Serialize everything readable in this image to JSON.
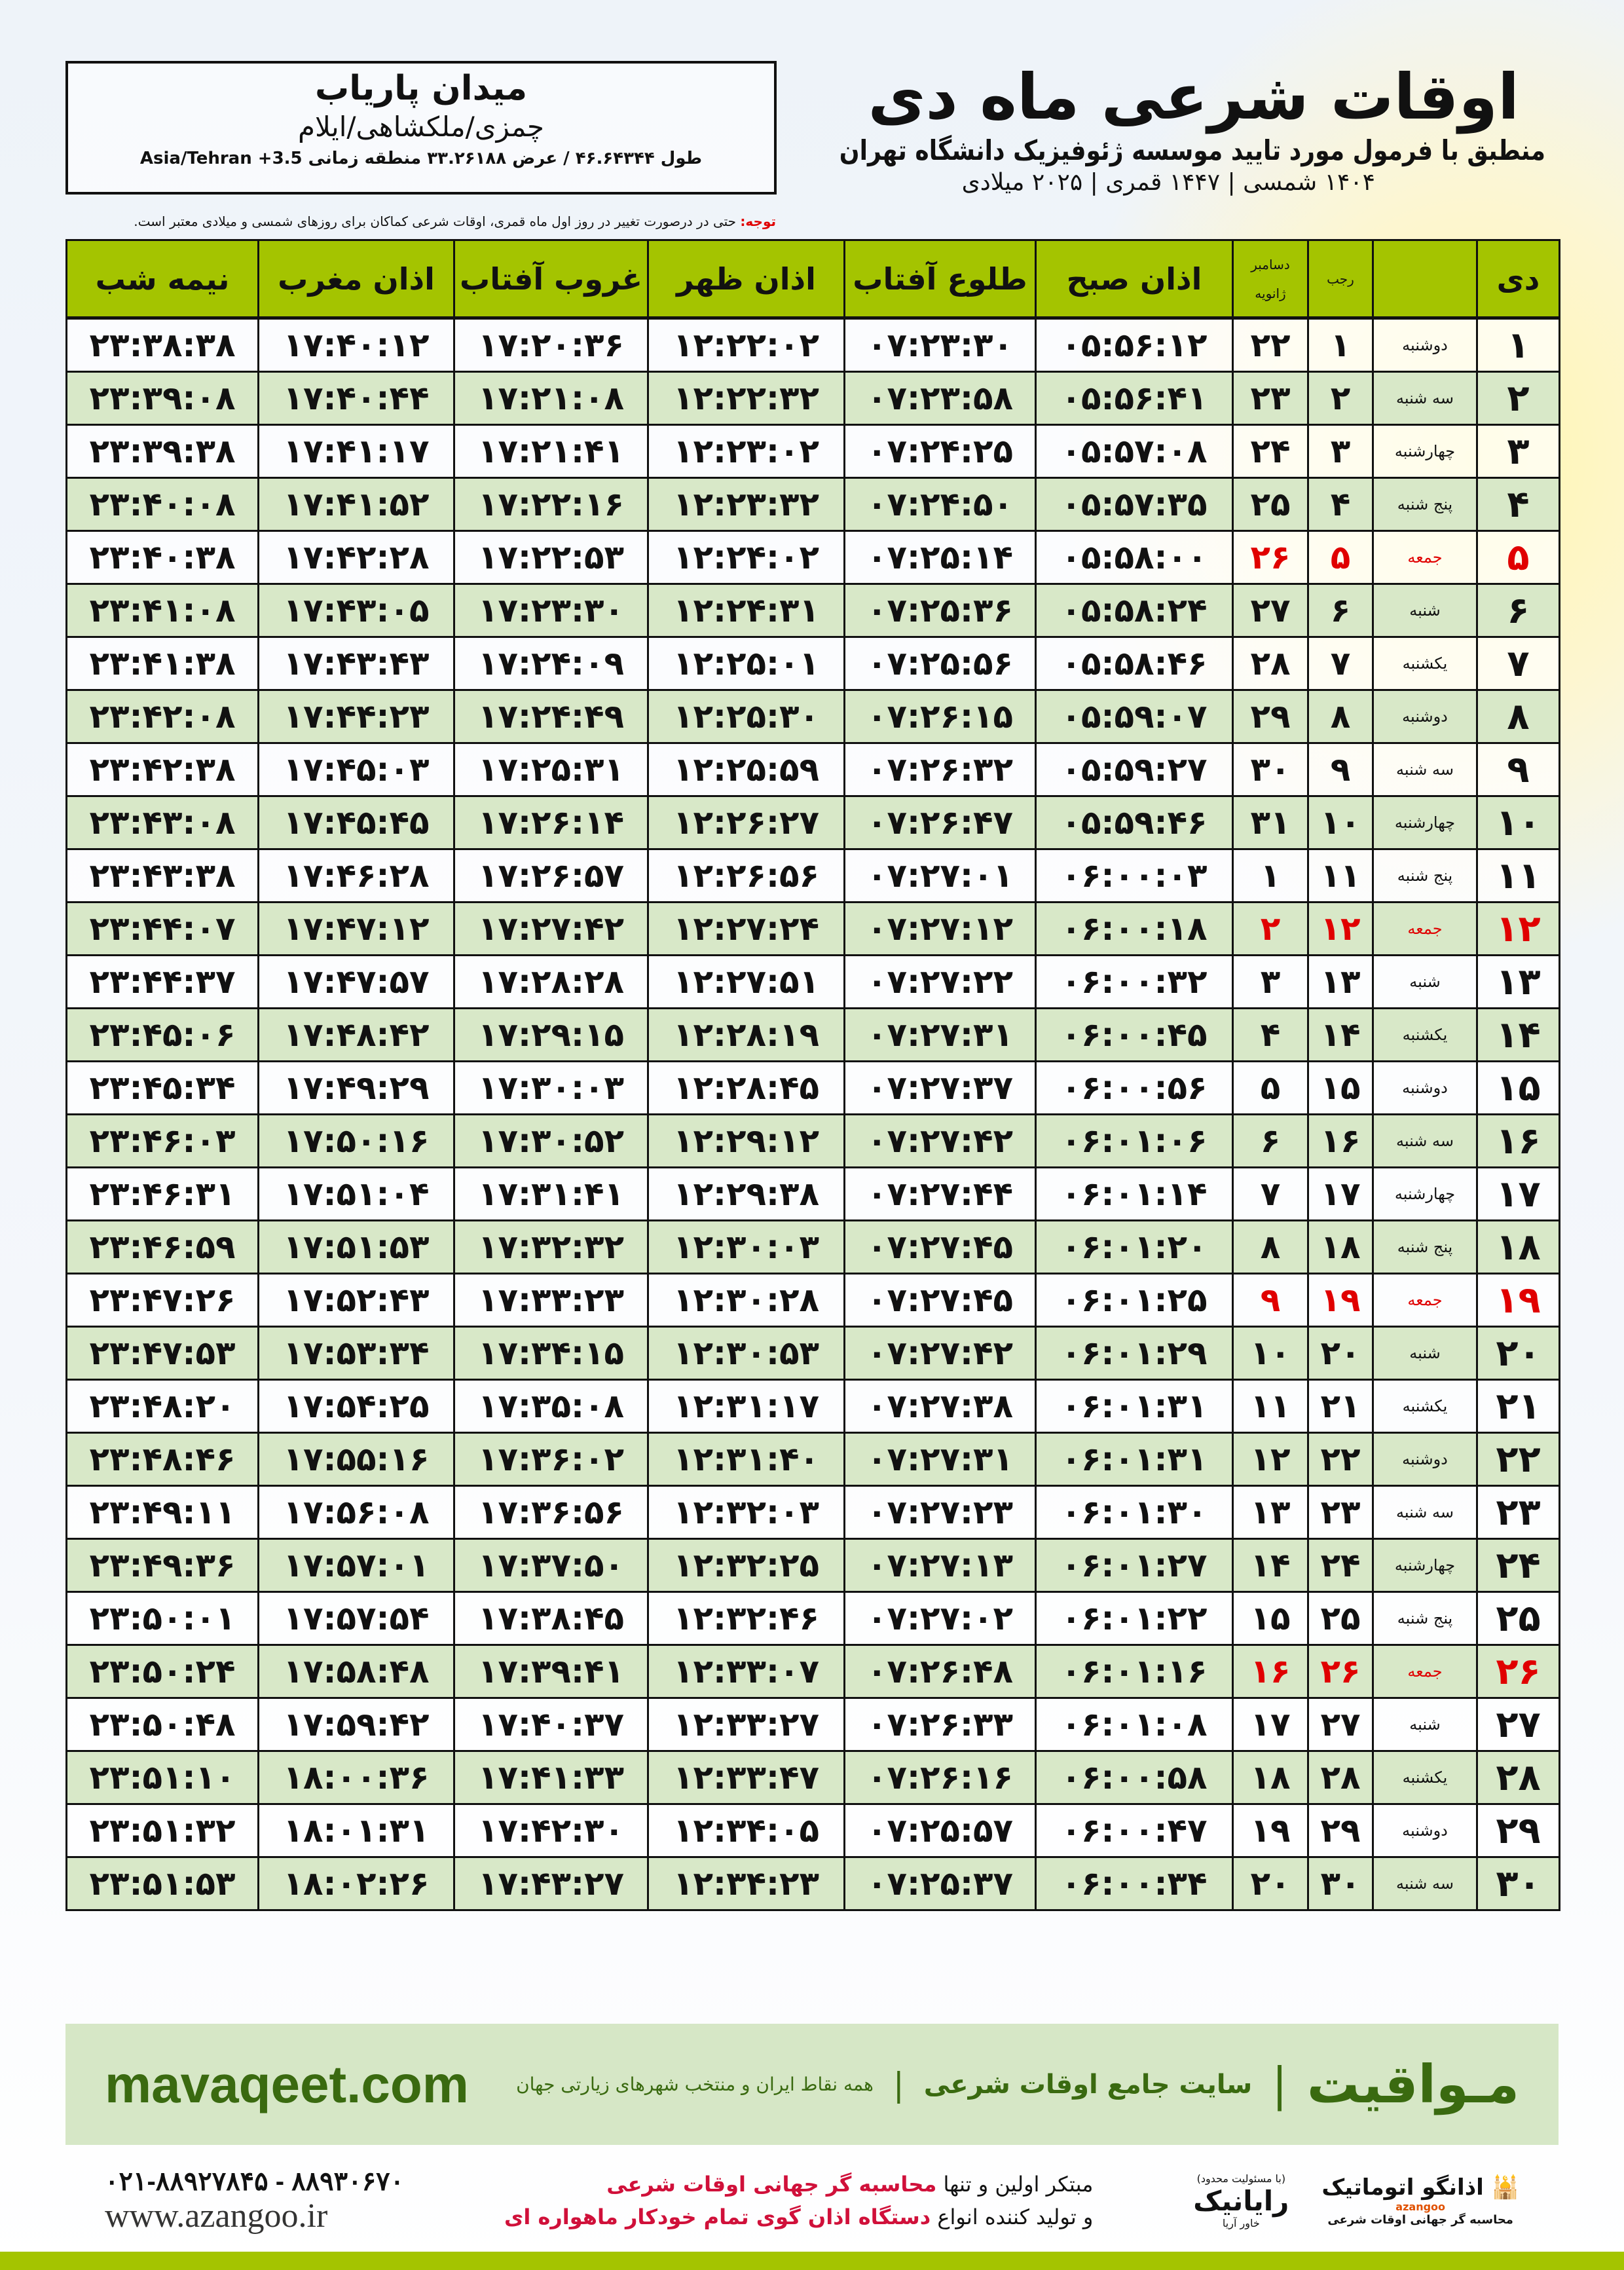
{
  "location": {
    "name": "میدان پاریاب",
    "region": "چمزی/ملکشاهی/ایلام",
    "coords": "طول ۴۶.۶۴۳۴۴ / عرض ۳۳.۲۶۱۸۸ منطقه زمانی ‎Asia/Tehran +3.5"
  },
  "header": {
    "title": "اوقات شرعی ماه دی",
    "subtitle": "منطبق با فرمول مورد تایید موسسه ژئوفیزیک دانشگاه تهران",
    "dates": "۱۴۰۴ شمسی | ۱۴۴۷ قمری | ۲۰۲۵ میلادی"
  },
  "note": {
    "label": "توجه:",
    "text": " حتی در درصورت تغییر در روز اول ماه قمری، اوقات شرعی کماکان برای روزهای شمسی و میلادی معتبر است."
  },
  "columns": {
    "day": "دی",
    "rajab": "رجب",
    "greg1": "دسامبر",
    "greg2": "ژانویه",
    "sobh": "اذان صبح",
    "tolu": "طلوع آفتاب",
    "zohr": "اذان ظهر",
    "ghorub": "غروب آفتاب",
    "maghrib": "اذان مغرب",
    "nimeh": "نیمه شب"
  },
  "colors": {
    "header_green": "#a4c400",
    "row_green": "#d8e8c8",
    "friday_red": "#e00000",
    "brand_green": "#3a6a10"
  },
  "rows": [
    [
      "۱",
      "دوشنبه",
      "۱",
      "۲۲",
      "۰۵:۵۶:۱۲",
      "۰۷:۲۳:۳۰",
      "۱۲:۲۲:۰۲",
      "۱۷:۲۰:۳۶",
      "۱۷:۴۰:۱۲",
      "۲۳:۳۸:۳۸"
    ],
    [
      "۲",
      "سه شنبه",
      "۲",
      "۲۳",
      "۰۵:۵۶:۴۱",
      "۰۷:۲۳:۵۸",
      "۱۲:۲۲:۳۲",
      "۱۷:۲۱:۰۸",
      "۱۷:۴۰:۴۴",
      "۲۳:۳۹:۰۸"
    ],
    [
      "۳",
      "چهارشنبه",
      "۳",
      "۲۴",
      "۰۵:۵۷:۰۸",
      "۰۷:۲۴:۲۵",
      "۱۲:۲۳:۰۲",
      "۱۷:۲۱:۴۱",
      "۱۷:۴۱:۱۷",
      "۲۳:۳۹:۳۸"
    ],
    [
      "۴",
      "پنج شنبه",
      "۴",
      "۲۵",
      "۰۵:۵۷:۳۵",
      "۰۷:۲۴:۵۰",
      "۱۲:۲۳:۳۲",
      "۱۷:۲۲:۱۶",
      "۱۷:۴۱:۵۲",
      "۲۳:۴۰:۰۸"
    ],
    [
      "۵",
      "جمعه",
      "۵",
      "۲۶",
      "۰۵:۵۸:۰۰",
      "۰۷:۲۵:۱۴",
      "۱۲:۲۴:۰۲",
      "۱۷:۲۲:۵۳",
      "۱۷:۴۲:۲۸",
      "۲۳:۴۰:۳۸"
    ],
    [
      "۶",
      "شنبه",
      "۶",
      "۲۷",
      "۰۵:۵۸:۲۴",
      "۰۷:۲۵:۳۶",
      "۱۲:۲۴:۳۱",
      "۱۷:۲۳:۳۰",
      "۱۷:۴۳:۰۵",
      "۲۳:۴۱:۰۸"
    ],
    [
      "۷",
      "یکشنبه",
      "۷",
      "۲۸",
      "۰۵:۵۸:۴۶",
      "۰۷:۲۵:۵۶",
      "۱۲:۲۵:۰۱",
      "۱۷:۲۴:۰۹",
      "۱۷:۴۳:۴۳",
      "۲۳:۴۱:۳۸"
    ],
    [
      "۸",
      "دوشنبه",
      "۸",
      "۲۹",
      "۰۵:۵۹:۰۷",
      "۰۷:۲۶:۱۵",
      "۱۲:۲۵:۳۰",
      "۱۷:۲۴:۴۹",
      "۱۷:۴۴:۲۳",
      "۲۳:۴۲:۰۸"
    ],
    [
      "۹",
      "سه شنبه",
      "۹",
      "۳۰",
      "۰۵:۵۹:۲۷",
      "۰۷:۲۶:۳۲",
      "۱۲:۲۵:۵۹",
      "۱۷:۲۵:۳۱",
      "۱۷:۴۵:۰۳",
      "۲۳:۴۲:۳۸"
    ],
    [
      "۱۰",
      "چهارشنبه",
      "۱۰",
      "۳۱",
      "۰۵:۵۹:۴۶",
      "۰۷:۲۶:۴۷",
      "۱۲:۲۶:۲۷",
      "۱۷:۲۶:۱۴",
      "۱۷:۴۵:۴۵",
      "۲۳:۴۳:۰۸"
    ],
    [
      "۱۱",
      "پنج شنبه",
      "۱۱",
      "۱",
      "۰۶:۰۰:۰۳",
      "۰۷:۲۷:۰۱",
      "۱۲:۲۶:۵۶",
      "۱۷:۲۶:۵۷",
      "۱۷:۴۶:۲۸",
      "۲۳:۴۳:۳۸"
    ],
    [
      "۱۲",
      "جمعه",
      "۱۲",
      "۲",
      "۰۶:۰۰:۱۸",
      "۰۷:۲۷:۱۲",
      "۱۲:۲۷:۲۴",
      "۱۷:۲۷:۴۲",
      "۱۷:۴۷:۱۲",
      "۲۳:۴۴:۰۷"
    ],
    [
      "۱۳",
      "شنبه",
      "۱۳",
      "۳",
      "۰۶:۰۰:۳۲",
      "۰۷:۲۷:۲۲",
      "۱۲:۲۷:۵۱",
      "۱۷:۲۸:۲۸",
      "۱۷:۴۷:۵۷",
      "۲۳:۴۴:۳۷"
    ],
    [
      "۱۴",
      "یکشنبه",
      "۱۴",
      "۴",
      "۰۶:۰۰:۴۵",
      "۰۷:۲۷:۳۱",
      "۱۲:۲۸:۱۹",
      "۱۷:۲۹:۱۵",
      "۱۷:۴۸:۴۲",
      "۲۳:۴۵:۰۶"
    ],
    [
      "۱۵",
      "دوشنبه",
      "۱۵",
      "۵",
      "۰۶:۰۰:۵۶",
      "۰۷:۲۷:۳۷",
      "۱۲:۲۸:۴۵",
      "۱۷:۳۰:۰۳",
      "۱۷:۴۹:۲۹",
      "۲۳:۴۵:۳۴"
    ],
    [
      "۱۶",
      "سه شنبه",
      "۱۶",
      "۶",
      "۰۶:۰۱:۰۶",
      "۰۷:۲۷:۴۲",
      "۱۲:۲۹:۱۲",
      "۱۷:۳۰:۵۲",
      "۱۷:۵۰:۱۶",
      "۲۳:۴۶:۰۳"
    ],
    [
      "۱۷",
      "چهارشنبه",
      "۱۷",
      "۷",
      "۰۶:۰۱:۱۴",
      "۰۷:۲۷:۴۴",
      "۱۲:۲۹:۳۸",
      "۱۷:۳۱:۴۱",
      "۱۷:۵۱:۰۴",
      "۲۳:۴۶:۳۱"
    ],
    [
      "۱۸",
      "پنج شنبه",
      "۱۸",
      "۸",
      "۰۶:۰۱:۲۰",
      "۰۷:۲۷:۴۵",
      "۱۲:۳۰:۰۳",
      "۱۷:۳۲:۳۲",
      "۱۷:۵۱:۵۳",
      "۲۳:۴۶:۵۹"
    ],
    [
      "۱۹",
      "جمعه",
      "۱۹",
      "۹",
      "۰۶:۰۱:۲۵",
      "۰۷:۲۷:۴۵",
      "۱۲:۳۰:۲۸",
      "۱۷:۳۳:۲۳",
      "۱۷:۵۲:۴۳",
      "۲۳:۴۷:۲۶"
    ],
    [
      "۲۰",
      "شنبه",
      "۲۰",
      "۱۰",
      "۰۶:۰۱:۲۹",
      "۰۷:۲۷:۴۲",
      "۱۲:۳۰:۵۳",
      "۱۷:۳۴:۱۵",
      "۱۷:۵۳:۳۴",
      "۲۳:۴۷:۵۳"
    ],
    [
      "۲۱",
      "یکشنبه",
      "۲۱",
      "۱۱",
      "۰۶:۰۱:۳۱",
      "۰۷:۲۷:۳۸",
      "۱۲:۳۱:۱۷",
      "۱۷:۳۵:۰۸",
      "۱۷:۵۴:۲۵",
      "۲۳:۴۸:۲۰"
    ],
    [
      "۲۲",
      "دوشنبه",
      "۲۲",
      "۱۲",
      "۰۶:۰۱:۳۱",
      "۰۷:۲۷:۳۱",
      "۱۲:۳۱:۴۰",
      "۱۷:۳۶:۰۲",
      "۱۷:۵۵:۱۶",
      "۲۳:۴۸:۴۶"
    ],
    [
      "۲۳",
      "سه شنبه",
      "۲۳",
      "۱۳",
      "۰۶:۰۱:۳۰",
      "۰۷:۲۷:۲۳",
      "۱۲:۳۲:۰۳",
      "۱۷:۳۶:۵۶",
      "۱۷:۵۶:۰۸",
      "۲۳:۴۹:۱۱"
    ],
    [
      "۲۴",
      "چهارشنبه",
      "۲۴",
      "۱۴",
      "۰۶:۰۱:۲۷",
      "۰۷:۲۷:۱۳",
      "۱۲:۳۲:۲۵",
      "۱۷:۳۷:۵۰",
      "۱۷:۵۷:۰۱",
      "۲۳:۴۹:۳۶"
    ],
    [
      "۲۵",
      "پنج شنبه",
      "۲۵",
      "۱۵",
      "۰۶:۰۱:۲۲",
      "۰۷:۲۷:۰۲",
      "۱۲:۳۲:۴۶",
      "۱۷:۳۸:۴۵",
      "۱۷:۵۷:۵۴",
      "۲۳:۵۰:۰۱"
    ],
    [
      "۲۶",
      "جمعه",
      "۲۶",
      "۱۶",
      "۰۶:۰۱:۱۶",
      "۰۷:۲۶:۴۸",
      "۱۲:۳۳:۰۷",
      "۱۷:۳۹:۴۱",
      "۱۷:۵۸:۴۸",
      "۲۳:۵۰:۲۴"
    ],
    [
      "۲۷",
      "شنبه",
      "۲۷",
      "۱۷",
      "۰۶:۰۱:۰۸",
      "۰۷:۲۶:۳۳",
      "۱۲:۳۳:۲۷",
      "۱۷:۴۰:۳۷",
      "۱۷:۵۹:۴۲",
      "۲۳:۵۰:۴۸"
    ],
    [
      "۲۸",
      "یکشنبه",
      "۲۸",
      "۱۸",
      "۰۶:۰۰:۵۸",
      "۰۷:۲۶:۱۶",
      "۱۲:۳۳:۴۷",
      "۱۷:۴۱:۳۳",
      "۱۸:۰۰:۳۶",
      "۲۳:۵۱:۱۰"
    ],
    [
      "۲۹",
      "دوشنبه",
      "۲۹",
      "۱۹",
      "۰۶:۰۰:۴۷",
      "۰۷:۲۵:۵۷",
      "۱۲:۳۴:۰۵",
      "۱۷:۴۲:۳۰",
      "۱۸:۰۱:۳۱",
      "۲۳:۵۱:۳۲"
    ],
    [
      "۳۰",
      "سه شنبه",
      "۳۰",
      "۲۰",
      "۰۶:۰۰:۳۴",
      "۰۷:۲۵:۳۷",
      "۱۲:۳۴:۲۳",
      "۱۷:۴۳:۲۷",
      "۱۸:۰۲:۲۶",
      "۲۳:۵۱:۵۳"
    ]
  ],
  "footer": {
    "brand": "مـواقیت",
    "tagline": "سایت جامع اوقات شرعی",
    "tagline2": "همه نقاط ایران و منتخب شهرهای زیارتی جهان",
    "site": "mavaqeet.com",
    "phone": "۰۲۱-۸۸۹۲۷۸۴۵ - ۸۸۹۳۰۶۷۰",
    "web": "www.azangoo.ir",
    "promo1_a": "مبتکر اولین و تنها ",
    "promo1_b": "محاسبه گر جهانی اوقات شرعی",
    "promo2_a": "و تولید کننده انواع ",
    "promo2_b": "دستگاه اذان گوی تمام خودکار ماهواره ای",
    "logo_azangoo": "اذانگو اتوماتیک",
    "logo_azangoo_sub": "محاسبه گر جهانی اوقات شرعی",
    "logo_azangoo_en": "azangoo",
    "logo_rayanik": "رایانیک",
    "logo_rayanik_sub": "خاور آریا",
    "logo_rayanik_note": "(با مسئولیت محدود)"
  }
}
